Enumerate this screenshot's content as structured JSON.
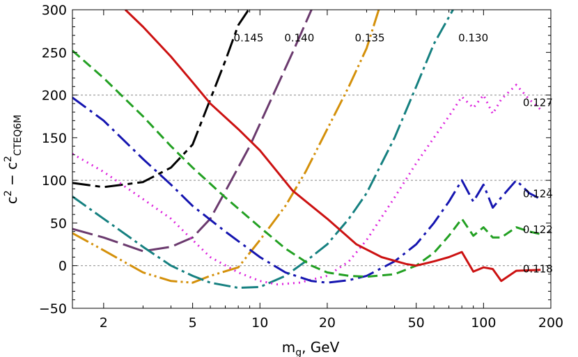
{
  "chart_data": {
    "type": "line",
    "title": "",
    "xlabel": {
      "base": "m",
      "sub": "g",
      "rest": ", GeV"
    },
    "ylabel": {
      "c1": "c",
      "sup1": "2",
      "minus": " − c",
      "sup2": "2",
      "sub2": "CTEQ6M"
    },
    "xscale": "log",
    "xlim": [
      1.45,
      200
    ],
    "ylim": [
      -50,
      300
    ],
    "x_ticks": [
      2,
      5,
      10,
      20,
      50,
      100,
      200
    ],
    "x_tick_labels": [
      "2",
      "5",
      "10",
      "20",
      "50",
      "100",
      "200"
    ],
    "y_ticks": [
      -50,
      0,
      50,
      100,
      150,
      200,
      250,
      300
    ],
    "y_tick_labels": [
      "−50",
      "0",
      "50",
      "100",
      "150",
      "200",
      "250",
      "300"
    ],
    "reference_lines": [
      0,
      100,
      200
    ],
    "series": [
      {
        "name": "0.145",
        "color": "#000000",
        "dash": "26,7,7,7",
        "label_x": 8.9,
        "label_y": 263,
        "points": [
          [
            1.45,
            97
          ],
          [
            2,
            92
          ],
          [
            3,
            98
          ],
          [
            4,
            115
          ],
          [
            5,
            142
          ],
          [
            6,
            195
          ],
          [
            7,
            240
          ],
          [
            8,
            282
          ],
          [
            8.9,
            300
          ]
        ]
      },
      {
        "name": "0.140",
        "color": "#6B3A6E",
        "dash": "30,8",
        "label_x": 15,
        "label_y": 263,
        "points": [
          [
            1.45,
            43
          ],
          [
            2,
            33
          ],
          [
            3,
            17
          ],
          [
            4,
            22
          ],
          [
            5,
            33
          ],
          [
            6,
            55
          ],
          [
            7,
            87
          ],
          [
            9,
            140
          ],
          [
            11,
            190
          ],
          [
            14,
            250
          ],
          [
            17,
            300
          ]
        ]
      },
      {
        "name": "0.135",
        "color": "#D4900A",
        "dash": "26,5,3,5,3,5",
        "label_x": 31,
        "label_y": 263,
        "points": [
          [
            1.45,
            38
          ],
          [
            2,
            18
          ],
          [
            3,
            -8
          ],
          [
            4,
            -18
          ],
          [
            5,
            -20
          ],
          [
            6,
            -12
          ],
          [
            8,
            -2
          ],
          [
            10,
            30
          ],
          [
            13,
            70
          ],
          [
            16,
            110
          ],
          [
            20,
            160
          ],
          [
            25,
            210
          ],
          [
            30,
            255
          ],
          [
            34,
            300
          ]
        ]
      },
      {
        "name": "0.130",
        "color": "#158080",
        "dash": "24,6,4,6",
        "label_x": 90,
        "label_y": 263,
        "points": [
          [
            1.45,
            81
          ],
          [
            2,
            55
          ],
          [
            3,
            22
          ],
          [
            4,
            0
          ],
          [
            5,
            -12
          ],
          [
            6,
            -20
          ],
          [
            8,
            -26
          ],
          [
            10,
            -25
          ],
          [
            13,
            -12
          ],
          [
            16,
            5
          ],
          [
            20,
            25
          ],
          [
            25,
            55
          ],
          [
            30,
            85
          ],
          [
            40,
            150
          ],
          [
            50,
            210
          ],
          [
            60,
            260
          ],
          [
            73,
            300
          ]
        ]
      },
      {
        "name": "0.127",
        "color": "#DD22DD",
        "dash": "2,6",
        "label_x": 175,
        "label_y": 187,
        "points": [
          [
            1.45,
            131
          ],
          [
            2,
            110
          ],
          [
            3,
            78
          ],
          [
            4,
            55
          ],
          [
            5,
            30
          ],
          [
            6,
            10
          ],
          [
            8,
            -8
          ],
          [
            10,
            -18
          ],
          [
            12,
            -22
          ],
          [
            15,
            -20
          ],
          [
            20,
            -12
          ],
          [
            25,
            5
          ],
          [
            30,
            30
          ],
          [
            40,
            80
          ],
          [
            50,
            120
          ],
          [
            60,
            150
          ],
          [
            70,
            175
          ],
          [
            80,
            198
          ],
          [
            90,
            185
          ],
          [
            100,
            200
          ],
          [
            110,
            178
          ],
          [
            120,
            195
          ],
          [
            140,
            212
          ],
          [
            160,
            195
          ],
          [
            180,
            183
          ]
        ]
      },
      {
        "name": "0.124",
        "color": "#1515B0",
        "dash": "24,7,4,7",
        "label_x": 175,
        "label_y": 80,
        "points": [
          [
            1.45,
            197
          ],
          [
            2,
            170
          ],
          [
            3,
            125
          ],
          [
            4,
            95
          ],
          [
            5,
            70
          ],
          [
            7,
            40
          ],
          [
            10,
            10
          ],
          [
            13,
            -8
          ],
          [
            17,
            -18
          ],
          [
            20,
            -20
          ],
          [
            25,
            -17
          ],
          [
            30,
            -12
          ],
          [
            40,
            5
          ],
          [
            50,
            25
          ],
          [
            60,
            50
          ],
          [
            70,
            75
          ],
          [
            80,
            100
          ],
          [
            90,
            75
          ],
          [
            100,
            95
          ],
          [
            110,
            68
          ],
          [
            120,
            80
          ],
          [
            140,
            100
          ],
          [
            160,
            85
          ],
          [
            180,
            78
          ]
        ]
      },
      {
        "name": "0.122",
        "color": "#22A022",
        "dash": "14,7",
        "label_x": 175,
        "label_y": 38,
        "points": [
          [
            1.45,
            252
          ],
          [
            2,
            220
          ],
          [
            3,
            175
          ],
          [
            4,
            140
          ],
          [
            5,
            115
          ],
          [
            7,
            80
          ],
          [
            10,
            45
          ],
          [
            13,
            20
          ],
          [
            17,
            0
          ],
          [
            20,
            -8
          ],
          [
            25,
            -12
          ],
          [
            30,
            -13
          ],
          [
            40,
            -10
          ],
          [
            50,
            0
          ],
          [
            60,
            15
          ],
          [
            70,
            35
          ],
          [
            80,
            55
          ],
          [
            90,
            35
          ],
          [
            100,
            45
          ],
          [
            110,
            33
          ],
          [
            120,
            33
          ],
          [
            140,
            45
          ],
          [
            160,
            40
          ],
          [
            180,
            37
          ]
        ]
      },
      {
        "name": "0.118",
        "color": "#CC1111",
        "dash": "",
        "label_x": 175,
        "label_y": -8,
        "points": [
          [
            2.5,
            300
          ],
          [
            3,
            280
          ],
          [
            4,
            245
          ],
          [
            5,
            215
          ],
          [
            6,
            190
          ],
          [
            8,
            160
          ],
          [
            10,
            135
          ],
          [
            14,
            88
          ],
          [
            20,
            55
          ],
          [
            27,
            25
          ],
          [
            35,
            10
          ],
          [
            45,
            2
          ],
          [
            50,
            0
          ],
          [
            60,
            5
          ],
          [
            70,
            10
          ],
          [
            80,
            16
          ],
          [
            90,
            -7
          ],
          [
            100,
            -2
          ],
          [
            110,
            -4
          ],
          [
            120,
            -18
          ],
          [
            140,
            -6
          ],
          [
            180,
            -5
          ]
        ]
      }
    ]
  }
}
